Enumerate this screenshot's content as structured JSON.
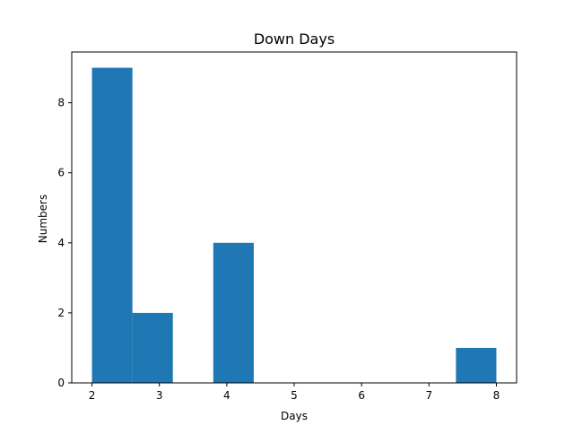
{
  "chart_data": {
    "type": "bar",
    "title": "Down Days",
    "xlabel": "Days",
    "ylabel": "Numbers",
    "xlim": [
      1.7,
      8.3
    ],
    "ylim": [
      0,
      9.45
    ],
    "xticks": [
      2,
      3,
      4,
      5,
      6,
      7,
      8
    ],
    "yticks": [
      0,
      2,
      4,
      6,
      8
    ],
    "grid": false,
    "legend": "none",
    "bar_color": "#1f77b4",
    "bins": [
      {
        "start": 2.0,
        "end": 2.6,
        "value": 9
      },
      {
        "start": 2.6,
        "end": 3.2,
        "value": 2
      },
      {
        "start": 3.2,
        "end": 3.8,
        "value": 0
      },
      {
        "start": 3.8,
        "end": 4.4,
        "value": 4
      },
      {
        "start": 4.4,
        "end": 5.0,
        "value": 0
      },
      {
        "start": 5.0,
        "end": 5.6,
        "value": 0
      },
      {
        "start": 5.6,
        "end": 6.2,
        "value": 0
      },
      {
        "start": 6.2,
        "end": 6.8,
        "value": 0
      },
      {
        "start": 6.8,
        "end": 7.4,
        "value": 0
      },
      {
        "start": 7.4,
        "end": 8.0,
        "value": 1
      }
    ]
  }
}
